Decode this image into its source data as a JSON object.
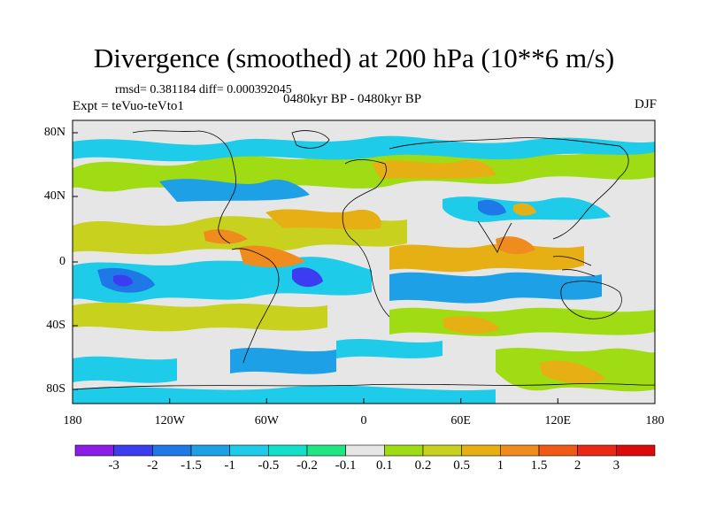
{
  "title": "Divergence (smoothed) at 200 hPa (10**6 m/s)",
  "stats": "rmsd= 0.381184 diff= 0.000392045",
  "experiment": "Expt = teVuo-teVto1",
  "period": "0480kyr BP - 0480kyr BP",
  "season": "DJF",
  "axes": {
    "y_ticks": [
      "80N",
      "40N",
      "0",
      "40S",
      "80S"
    ],
    "x_ticks": [
      "180",
      "120W",
      "60W",
      "0",
      "60E",
      "120E",
      "180"
    ]
  },
  "colorbar": {
    "labels": [
      "-3",
      "-2",
      "-1.5",
      "-1",
      "-0.5",
      "-0.2",
      "-0.1",
      "0.1",
      "0.2",
      "0.5",
      "1",
      "1.5",
      "2",
      "3"
    ],
    "colors": [
      "#8a1ee6",
      "#3c3cf0",
      "#1e78e6",
      "#1ea0e6",
      "#1ecbe8",
      "#12e0c8",
      "#1ee682",
      "#e6e6e6",
      "#a0dc14",
      "#c8d21e",
      "#e6af14",
      "#f08c1e",
      "#f05a14",
      "#eb2814",
      "#dc0a0a"
    ]
  },
  "background_color": "#e6e6e6"
}
